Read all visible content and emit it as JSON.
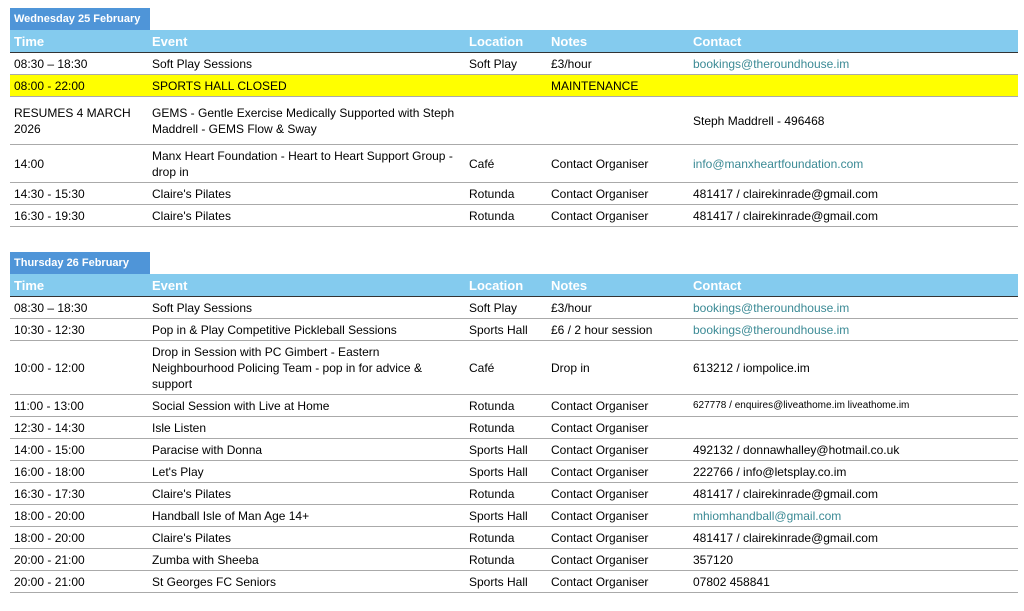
{
  "sections": [
    {
      "day": "Wednesday 25 February",
      "columns": [
        "Time",
        "Event",
        "Location",
        "Notes",
        "Contact"
      ],
      "rows": [
        {
          "cells": [
            "08:30 – 18:30",
            "Soft Play Sessions",
            "Soft Play",
            "£3/hour",
            {
              "text": "bookings@theroundhouse.im",
              "link": true
            }
          ]
        },
        {
          "cells": [
            "08:00 - 22:00",
            "SPORTS HALL CLOSED",
            null,
            "MAINTENANCE",
            null
          ],
          "highlight": "#ffff00"
        },
        {
          "cells": [
            "RESUMES 4 MARCH 2026",
            "GEMS - Gentle Exercise Medically Supported with Steph Maddrell - GEMS Flow & Sway",
            null,
            null,
            "Steph Maddrell - 496468"
          ]
        },
        {
          "cells": [
            "14:00",
            "Manx Heart Foundation - Heart to Heart Support Group - drop in",
            "Café",
            "Contact Organiser",
            {
              "text": "info@manxheartfoundation.com",
              "link": true
            }
          ]
        },
        {
          "cells": [
            "14:30 - 15:30",
            "Claire's Pilates",
            "Rotunda",
            "Contact Organiser",
            "481417 / clairekinrade@gmail.com"
          ]
        },
        {
          "cells": [
            "16:30 - 19:30",
            "Claire's Pilates",
            "Rotunda",
            "Contact Organiser",
            "481417 / clairekinrade@gmail.com"
          ]
        }
      ]
    },
    {
      "day": "Thursday 26 February",
      "columns": [
        "Time",
        "Event",
        "Location",
        "Notes",
        "Contact"
      ],
      "rows": [
        {
          "cells": [
            "08:30 – 18:30",
            "Soft Play Sessions",
            "Soft Play",
            "£3/hour",
            {
              "text": "bookings@theroundhouse.im",
              "link": true
            }
          ]
        },
        {
          "cells": [
            "10:30 - 12:30",
            "Pop in & Play Competitive Pickleball Sessions",
            "Sports Hall",
            "£6 / 2 hour session",
            {
              "text": "bookings@theroundhouse.im",
              "link": true
            }
          ]
        },
        {
          "cells": [
            "10:00 - 12:00",
            "Drop in Session with PC Gimbert - Eastern Neighbourhood Policing Team - pop in for advice & support",
            "Café",
            "Drop in",
            "613212 / iompolice.im"
          ]
        },
        {
          "cells": [
            "11:00 - 13:00",
            "Social Session with Live at Home",
            "Rotunda",
            "Contact Organiser",
            "627778 / enquires@liveathome.im liveathome.im"
          ]
        },
        {
          "cells": [
            "12:30 - 14:30",
            "Isle Listen",
            "Rotunda",
            "Contact Organiser",
            null
          ]
        },
        {
          "cells": [
            "14:00 - 15:00",
            "Paracise with Donna",
            "Sports Hall",
            "Contact Organiser",
            "492132 / donnawhalley@hotmail.co.uk"
          ]
        },
        {
          "cells": [
            "16:00 - 18:00",
            "Let's Play",
            "Sports Hall",
            "Contact Organiser",
            "222766 / info@letsplay.co.im"
          ]
        },
        {
          "cells": [
            "16:30 - 17:30",
            "Claire's Pilates",
            "Rotunda",
            "Contact Organiser",
            "481417 / clairekinrade@gmail.com"
          ]
        },
        {
          "cells": [
            "18:00 - 20:00",
            "Handball Isle of Man Age 14+",
            "Sports Hall",
            "Contact Organiser",
            {
              "text": "mhiomhandball@gmail.com",
              "link": true
            }
          ]
        },
        {
          "cells": [
            "18:00 - 20:00",
            "Claire's Pilates",
            "Rotunda",
            "Contact Organiser",
            "481417 / clairekinrade@gmail.com"
          ]
        },
        {
          "cells": [
            "20:00 - 21:00",
            "Zumba with Sheeba",
            "Rotunda",
            "Contact Organiser",
            "357120"
          ]
        },
        {
          "cells": [
            "20:00 - 21:00",
            "St Georges FC Seniors",
            "Sports Hall",
            "Contact Organiser",
            "07802 458841"
          ]
        }
      ]
    }
  ]
}
